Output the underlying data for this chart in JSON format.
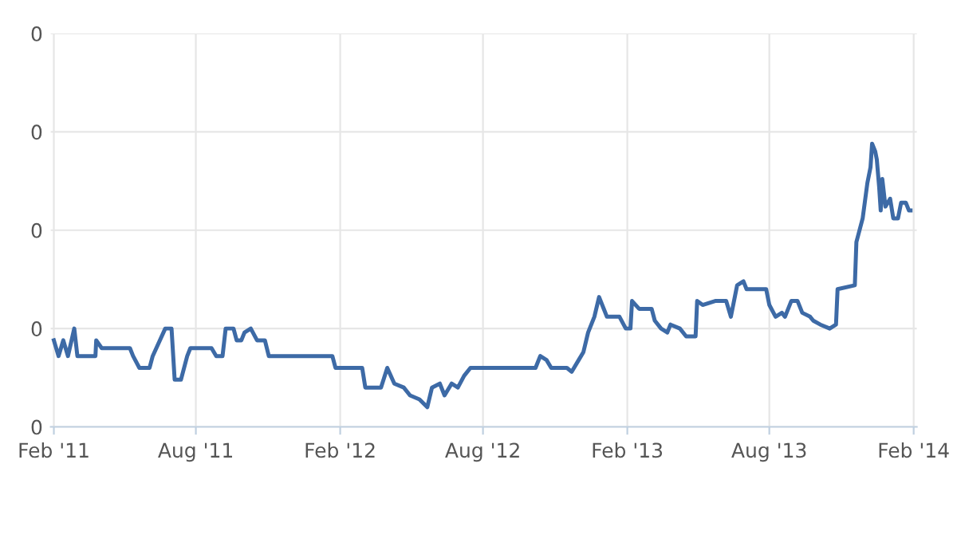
{
  "chart_data": {
    "type": "line",
    "grid": true,
    "marker": "none",
    "line_style": "solid",
    "xlim": [
      "2011-01-28",
      "2014-02-05"
    ],
    "ylim": [
      0,
      0.4
    ],
    "xticks": [
      {
        "value": "2011-02-01",
        "label": "Feb '11"
      },
      {
        "value": "2011-08-01",
        "label": "Aug '11"
      },
      {
        "value": "2012-02-01",
        "label": "Feb '12"
      },
      {
        "value": "2012-08-01",
        "label": "Aug '12"
      },
      {
        "value": "2013-02-01",
        "label": "Feb '13"
      },
      {
        "value": "2013-08-01",
        "label": "Aug '13"
      },
      {
        "value": "2014-02-01",
        "label": "Feb '14"
      }
    ],
    "yticks": [
      0,
      {
        "value": 0.1,
        "label": "0"
      },
      {
        "value": 0.2,
        "label": "0"
      },
      {
        "value": 0.3,
        "label": "0"
      },
      {
        "value": 0.4,
        "label": "0"
      }
    ],
    "x": [
      "2011-02-01",
      "2011-02-07",
      "2011-02-13",
      "2011-02-19",
      "2011-02-27",
      "2011-03-03",
      "2011-03-26",
      "2011-03-27",
      "2011-04-03",
      "2011-05-09",
      "2011-05-13",
      "2011-05-21",
      "2011-06-03",
      "2011-06-07",
      "2011-06-23",
      "2011-07-01",
      "2011-07-05",
      "2011-07-13",
      "2011-07-21",
      "2011-07-25",
      "2011-08-21",
      "2011-08-27",
      "2011-09-04",
      "2011-09-08",
      "2011-09-18",
      "2011-09-22",
      "2011-09-28",
      "2011-10-02",
      "2011-10-10",
      "2011-10-18",
      "2011-10-28",
      "2011-11-02",
      "2012-01-22",
      "2012-01-26",
      "2012-02-29",
      "2012-03-04",
      "2012-03-24",
      "2012-04-01",
      "2012-04-10",
      "2012-04-22",
      "2012-04-30",
      "2012-05-12",
      "2012-05-22",
      "2012-05-28",
      "2012-06-07",
      "2012-06-13",
      "2012-06-22",
      "2012-06-30",
      "2012-07-08",
      "2012-07-16",
      "2012-10-07",
      "2012-10-13",
      "2012-10-21",
      "2012-10-27",
      "2012-11-16",
      "2012-11-22",
      "2012-12-01",
      "2012-12-07",
      "2012-12-13",
      "2012-12-21",
      "2012-12-27",
      "2013-01-02",
      "2013-01-06",
      "2013-01-22",
      "2013-01-30",
      "2013-02-05",
      "2013-02-07",
      "2013-02-16",
      "2013-03-04",
      "2013-03-08",
      "2013-03-16",
      "2013-03-24",
      "2013-03-28",
      "2013-04-09",
      "2013-04-17",
      "2013-04-29",
      "2013-05-01",
      "2013-05-08",
      "2013-05-24",
      "2013-06-07",
      "2013-06-13",
      "2013-06-21",
      "2013-06-29",
      "2013-07-03",
      "2013-07-28",
      "2013-08-01",
      "2013-08-09",
      "2013-08-17",
      "2013-08-21",
      "2013-08-29",
      "2013-09-06",
      "2013-09-12",
      "2013-09-22",
      "2013-09-26",
      "2013-10-05",
      "2013-10-17",
      "2013-10-25",
      "2013-10-27",
      "2013-11-18",
      "2013-11-20",
      "2013-11-28",
      "2013-12-04",
      "2013-12-08",
      "2013-12-10",
      "2013-12-14",
      "2013-12-16",
      "2013-12-19",
      "2013-12-21",
      "2013-12-23",
      "2013-12-27",
      "2014-01-02",
      "2014-01-06",
      "2014-01-12",
      "2014-01-16",
      "2014-01-22",
      "2014-01-26",
      "2014-01-28"
    ],
    "series": [
      {
        "color": "#3d6aa6",
        "values": [
          0.088,
          0.072,
          0.088,
          0.072,
          0.1,
          0.072,
          0.072,
          0.088,
          0.08,
          0.08,
          0.072,
          0.06,
          0.06,
          0.072,
          0.1,
          0.1,
          0.048,
          0.048,
          0.072,
          0.08,
          0.08,
          0.072,
          0.072,
          0.1,
          0.1,
          0.088,
          0.088,
          0.096,
          0.1,
          0.088,
          0.088,
          0.072,
          0.072,
          0.06,
          0.06,
          0.04,
          0.04,
          0.06,
          0.044,
          0.04,
          0.032,
          0.028,
          0.02,
          0.04,
          0.044,
          0.032,
          0.044,
          0.04,
          0.052,
          0.06,
          0.06,
          0.072,
          0.068,
          0.06,
          0.06,
          0.056,
          0.068,
          0.076,
          0.096,
          0.112,
          0.132,
          0.12,
          0.112,
          0.112,
          0.1,
          0.1,
          0.128,
          0.12,
          0.12,
          0.108,
          0.1,
          0.096,
          0.104,
          0.1,
          0.092,
          0.092,
          0.128,
          0.124,
          0.128,
          0.128,
          0.112,
          0.144,
          0.148,
          0.14,
          0.14,
          0.124,
          0.112,
          0.116,
          0.112,
          0.128,
          0.128,
          0.116,
          0.112,
          0.108,
          0.104,
          0.1,
          0.104,
          0.14,
          0.144,
          0.188,
          0.212,
          0.248,
          0.264,
          0.288,
          0.28,
          0.272,
          0.244,
          0.22,
          0.252,
          0.224,
          0.232,
          0.212,
          0.212,
          0.228,
          0.228,
          0.22,
          0.22
        ]
      }
    ]
  }
}
